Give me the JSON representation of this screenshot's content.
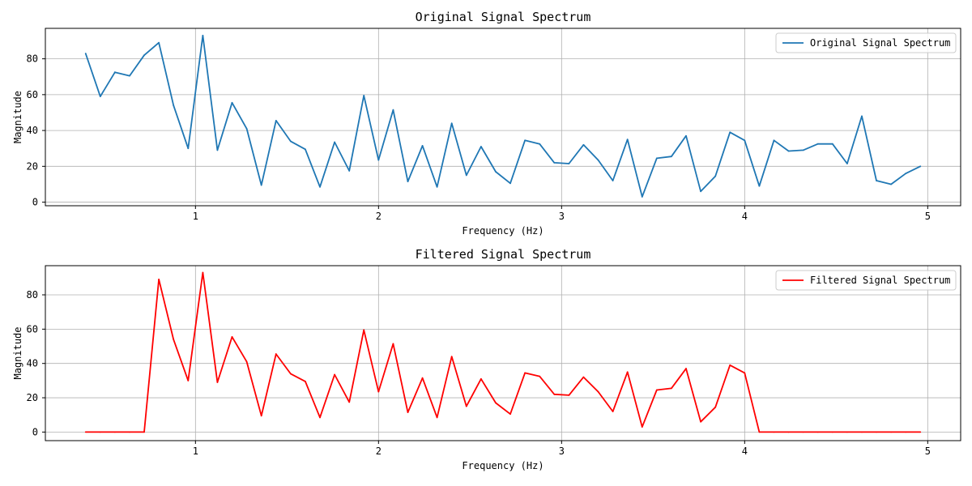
{
  "chart_data": [
    {
      "type": "line",
      "title": "Original Signal Spectrum",
      "xlabel": "Frequency (Hz)",
      "ylabel": "Magnitude",
      "xlim": [
        0.18,
        5.18
      ],
      "ylim": [
        -2,
        97
      ],
      "xticks": [
        1,
        2,
        3,
        4,
        5
      ],
      "yticks": [
        0,
        20,
        40,
        60,
        80
      ],
      "grid": true,
      "legend_position": "top-right",
      "series": [
        {
          "name": "Original Signal Spectrum",
          "color": "#1f77b4",
          "x": [
            0.4,
            0.48,
            0.56,
            0.64,
            0.72,
            0.8,
            0.88,
            0.96,
            1.04,
            1.12,
            1.2,
            1.28,
            1.36,
            1.44,
            1.52,
            1.6,
            1.68,
            1.76,
            1.84,
            1.92,
            2.0,
            2.08,
            2.16,
            2.24,
            2.32,
            2.4,
            2.48,
            2.56,
            2.64,
            2.72,
            2.8,
            2.88,
            2.96,
            3.04,
            3.12,
            3.2,
            3.28,
            3.36,
            3.44,
            3.52,
            3.6,
            3.68,
            3.76,
            3.84,
            3.92,
            4.0,
            4.08,
            4.16,
            4.24,
            4.32,
            4.4,
            4.48,
            4.56,
            4.64,
            4.72,
            4.8,
            4.88,
            4.96
          ],
          "y": [
            83,
            59,
            72.5,
            70.5,
            82,
            89,
            54,
            30,
            93,
            29,
            55.5,
            41,
            9.5,
            45.5,
            34,
            29.5,
            8.5,
            33.5,
            17.5,
            59.5,
            23.5,
            51.5,
            11.5,
            31.5,
            8.5,
            44,
            15,
            31,
            17,
            10.5,
            34.5,
            32.5,
            22,
            21.5,
            32,
            23.5,
            12,
            35,
            3,
            24.5,
            25.5,
            37,
            6,
            14.5,
            39,
            34.5,
            9,
            34.5,
            28.5,
            29,
            32.5,
            32.5,
            21.5,
            48,
            12,
            10,
            16,
            20
          ]
        }
      ]
    },
    {
      "type": "line",
      "title": "Filtered Signal Spectrum",
      "xlabel": "Frequency (Hz)",
      "ylabel": "Magnitude",
      "xlim": [
        0.18,
        5.18
      ],
      "ylim": [
        -5,
        97
      ],
      "xticks": [
        1,
        2,
        3,
        4,
        5
      ],
      "yticks": [
        0,
        20,
        40,
        60,
        80
      ],
      "grid": true,
      "legend_position": "top-right",
      "series": [
        {
          "name": "Filtered Signal Spectrum",
          "color": "#ff0000",
          "x": [
            0.4,
            0.48,
            0.56,
            0.64,
            0.72,
            0.8,
            0.88,
            0.96,
            1.04,
            1.12,
            1.2,
            1.28,
            1.36,
            1.44,
            1.52,
            1.6,
            1.68,
            1.76,
            1.84,
            1.92,
            2.0,
            2.08,
            2.16,
            2.24,
            2.32,
            2.4,
            2.48,
            2.56,
            2.64,
            2.72,
            2.8,
            2.88,
            2.96,
            3.04,
            3.12,
            3.2,
            3.28,
            3.36,
            3.44,
            3.52,
            3.6,
            3.68,
            3.76,
            3.84,
            3.92,
            4.0,
            4.08,
            4.16,
            4.24,
            4.32,
            4.4,
            4.48,
            4.56,
            4.64,
            4.72,
            4.8,
            4.88,
            4.96
          ],
          "y": [
            0,
            0,
            0,
            0,
            0,
            89,
            54,
            30,
            93,
            29,
            55.5,
            41,
            9.5,
            45.5,
            34,
            29.5,
            8.5,
            33.5,
            17.5,
            59.5,
            23.5,
            51.5,
            11.5,
            31.5,
            8.5,
            44,
            15,
            31,
            17,
            10.5,
            34.5,
            32.5,
            22,
            21.5,
            32,
            23.5,
            12,
            35,
            3,
            24.5,
            25.5,
            37,
            6,
            14.5,
            39,
            34.5,
            0,
            0,
            0,
            0,
            0,
            0,
            0,
            0,
            0,
            0,
            0,
            0
          ]
        }
      ]
    }
  ]
}
